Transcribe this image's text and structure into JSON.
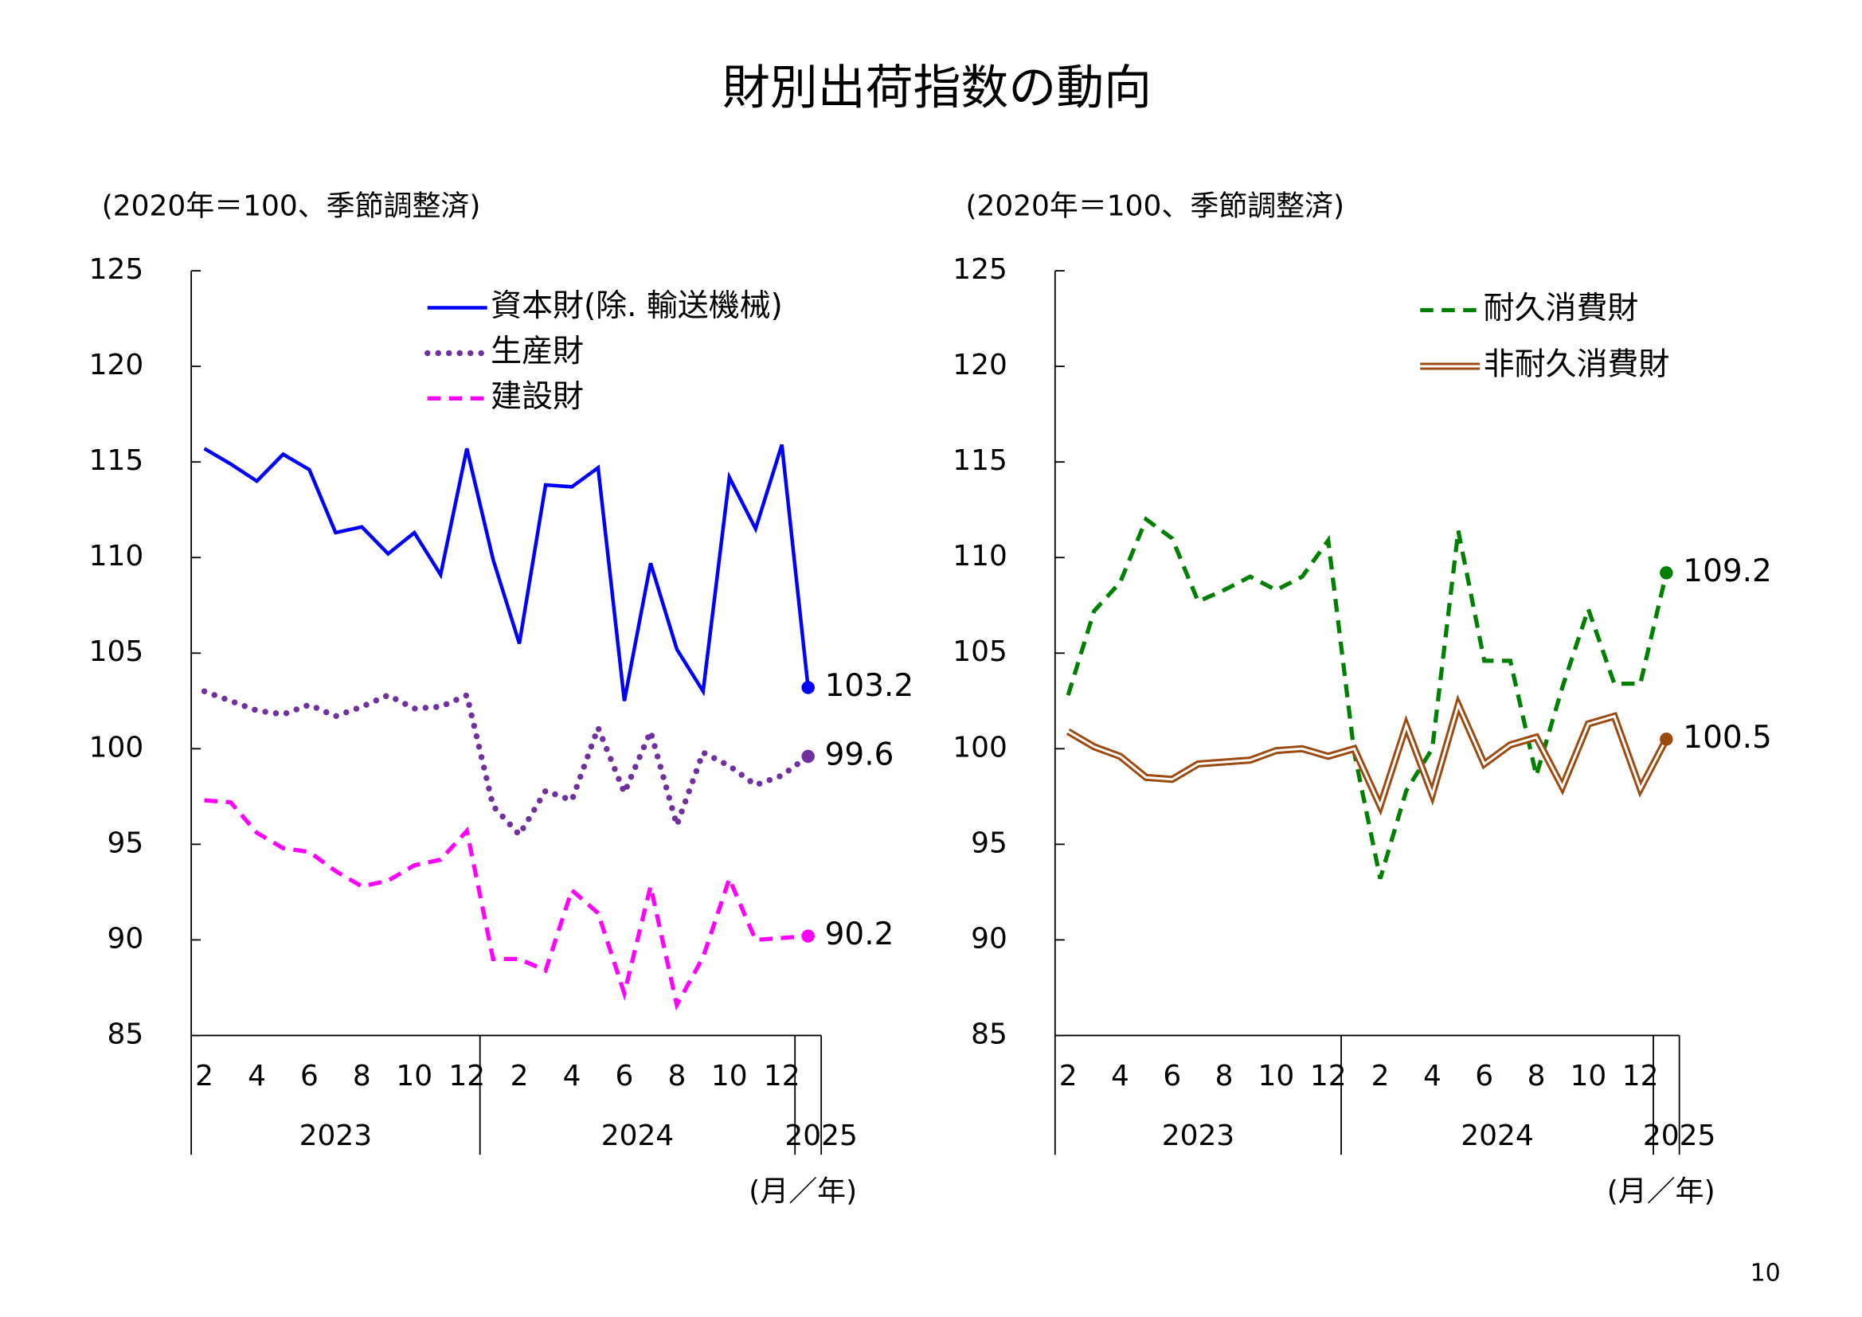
{
  "page_title": "財別出荷指数の動向",
  "page_number": "10",
  "chart_data": [
    {
      "type": "line",
      "subtitle": "(2020年＝100、季節調整済)",
      "x_label": "(月／年)",
      "categories": [
        "2",
        null,
        "4",
        null,
        "6",
        null,
        "8",
        null,
        "10",
        null,
        "12",
        null,
        "2",
        null,
        "4",
        null,
        "6",
        null,
        "8",
        null,
        "10",
        null,
        "12",
        null
      ],
      "years": [
        "2023",
        "2024",
        "2025"
      ],
      "ylim": [
        85,
        125
      ],
      "yticks": [
        85,
        90,
        95,
        100,
        105,
        110,
        115,
        120,
        125
      ],
      "legend": "upper center",
      "series": [
        {
          "name": "資本財(除. 輸送機械)",
          "color": "#0000ff",
          "style": "solid",
          "values": [
            115.7,
            114.9,
            114.0,
            115.4,
            114.6,
            111.3,
            111.6,
            110.2,
            111.3,
            109.1,
            115.7,
            109.9,
            105.5,
            113.8,
            113.7,
            114.7,
            102.5,
            109.7,
            105.2,
            103.0,
            114.2,
            111.5,
            115.9,
            103.2
          ],
          "end_label": "103.2"
        },
        {
          "name": "生産財",
          "color": "#7030a0",
          "style": "dotted",
          "values": [
            103.0,
            102.5,
            102.0,
            101.8,
            102.3,
            101.7,
            102.2,
            102.8,
            102.1,
            102.2,
            102.8,
            97.0,
            95.5,
            97.8,
            97.3,
            101.1,
            97.7,
            100.9,
            96.0,
            99.8,
            99.1,
            98.1,
            98.6,
            99.6
          ],
          "end_label": "99.6"
        },
        {
          "name": "建設財",
          "color": "#ff00ff",
          "style": "dashed",
          "values": [
            97.3,
            97.2,
            95.6,
            94.8,
            94.6,
            93.6,
            92.8,
            93.1,
            93.9,
            94.2,
            95.7,
            89.0,
            89.0,
            88.4,
            92.6,
            91.4,
            87.2,
            92.8,
            86.6,
            89.1,
            93.2,
            90.0,
            90.1,
            90.2
          ],
          "end_label": "90.2"
        }
      ]
    },
    {
      "type": "line",
      "subtitle": "(2020年＝100、季節調整済)",
      "x_label": "(月／年)",
      "categories": [
        "2",
        null,
        "4",
        null,
        "6",
        null,
        "8",
        null,
        "10",
        null,
        "12",
        null,
        "2",
        null,
        "4",
        null,
        "6",
        null,
        "8",
        null,
        "10",
        null,
        "12",
        null
      ],
      "years": [
        "2023",
        "2024",
        "2025"
      ],
      "ylim": [
        85,
        125
      ],
      "yticks": [
        85,
        90,
        95,
        100,
        105,
        110,
        115,
        120,
        125
      ],
      "legend": "upper right",
      "series": [
        {
          "name": "耐久消費財",
          "color": "#008000",
          "style": "dashed",
          "values": [
            102.8,
            107.2,
            108.7,
            112.0,
            111.0,
            107.7,
            108.3,
            109.0,
            108.3,
            109.0,
            110.9,
            99.8,
            93.2,
            97.8,
            100.0,
            111.4,
            104.6,
            104.6,
            98.6,
            103.2,
            107.3,
            103.4,
            103.4,
            109.2
          ],
          "end_label": "109.2"
        },
        {
          "name": "非耐久消費財",
          "color": "#9c4a10",
          "style": "double",
          "values": [
            100.9,
            100.1,
            99.6,
            98.5,
            98.4,
            99.2,
            99.3,
            99.4,
            99.9,
            100.0,
            99.6,
            100.0,
            97.0,
            101.2,
            97.6,
            102.3,
            99.2,
            100.2,
            100.6,
            98.0,
            101.3,
            101.7,
            97.9,
            100.5
          ],
          "end_label": "100.5"
        }
      ]
    }
  ]
}
